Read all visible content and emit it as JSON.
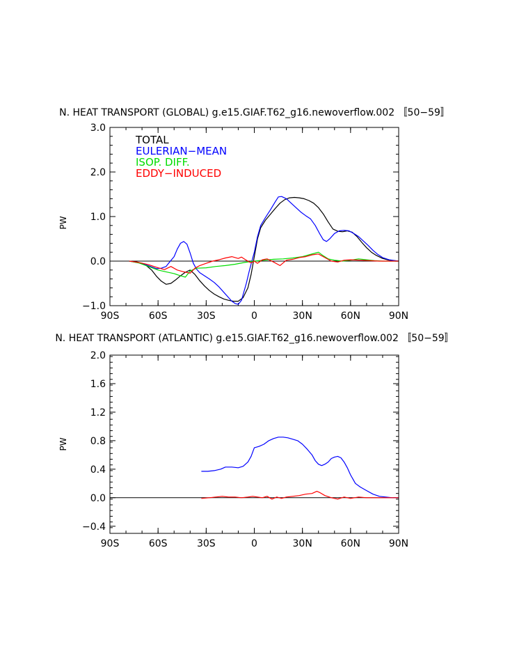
{
  "chart_data": [
    {
      "type": "line",
      "title": "N. HEAT TRANSPORT (GLOBAL) g.e15.GIAF.T62_g16.newoverflow.002 〚50−59〛",
      "xlabel": "",
      "ylabel": "PW",
      "xlim": [
        -90,
        90
      ],
      "ylim": [
        -1.0,
        3.0
      ],
      "xticks": [
        -90,
        -60,
        -30,
        0,
        30,
        60,
        90
      ],
      "xtick_labels": [
        "90S",
        "60S",
        "30S",
        "0",
        "30N",
        "60N",
        "90N"
      ],
      "yticks": [
        -1.0,
        0.0,
        1.0,
        2.0,
        3.0
      ],
      "ytick_labels": [
        "−1.0",
        "0.0",
        "1.0",
        "2.0",
        "3.0"
      ],
      "legend": [
        "TOTAL",
        "EULERIAN−MEAN",
        "ISOP. DIFF.",
        "EDDY−INDUCED"
      ],
      "legend_position": "top-left",
      "series": [
        {
          "name": "TOTAL",
          "color": "#000000",
          "x": [
            -78,
            -73,
            -68,
            -64,
            -61,
            -58,
            -55,
            -52,
            -49,
            -46,
            -43,
            -40,
            -37,
            -34,
            -31,
            -28,
            -25,
            -22,
            -19,
            -16,
            -13,
            -10,
            -7,
            -4,
            -2,
            0,
            2,
            4,
            7,
            10,
            13,
            16,
            19,
            22,
            25,
            28,
            31,
            34,
            37,
            40,
            43,
            46,
            49,
            52,
            55,
            58,
            61,
            64,
            67,
            70,
            73,
            76,
            80,
            84,
            88,
            90
          ],
          "y": [
            0,
            -0.02,
            -0.08,
            -0.2,
            -0.34,
            -0.45,
            -0.52,
            -0.5,
            -0.42,
            -0.33,
            -0.25,
            -0.2,
            -0.3,
            -0.44,
            -0.56,
            -0.66,
            -0.74,
            -0.8,
            -0.85,
            -0.88,
            -0.9,
            -0.9,
            -0.82,
            -0.6,
            -0.3,
            0.1,
            0.5,
            0.75,
            0.92,
            1.05,
            1.18,
            1.3,
            1.38,
            1.42,
            1.43,
            1.42,
            1.4,
            1.36,
            1.3,
            1.2,
            1.06,
            0.88,
            0.72,
            0.67,
            0.66,
            0.68,
            0.65,
            0.55,
            0.42,
            0.3,
            0.2,
            0.13,
            0.06,
            0.02,
            0,
            0
          ]
        },
        {
          "name": "EULERIAN−MEAN",
          "color": "#0000ff",
          "x": [
            -78,
            -73,
            -68,
            -64,
            -61,
            -58,
            -55,
            -53,
            -50,
            -48,
            -46,
            -44,
            -42,
            -40,
            -38,
            -36,
            -34,
            -31,
            -28,
            -25,
            -22,
            -19,
            -16,
            -14,
            -12,
            -10,
            -8,
            -5,
            -3,
            0,
            2,
            4,
            7,
            10,
            13,
            15,
            17,
            20,
            23,
            26,
            29,
            32,
            35,
            38,
            41,
            43,
            45,
            47,
            50,
            53,
            56,
            59,
            62,
            65,
            68,
            71,
            74,
            77,
            80,
            84,
            88,
            90
          ],
          "y": [
            0,
            -0.03,
            -0.08,
            -0.13,
            -0.17,
            -0.16,
            -0.12,
            -0.03,
            0.1,
            0.27,
            0.4,
            0.44,
            0.38,
            0.18,
            -0.05,
            -0.18,
            -0.26,
            -0.33,
            -0.4,
            -0.48,
            -0.58,
            -0.7,
            -0.82,
            -0.9,
            -0.95,
            -0.97,
            -0.88,
            -0.5,
            -0.2,
            0.2,
            0.55,
            0.8,
            0.98,
            1.15,
            1.33,
            1.44,
            1.45,
            1.4,
            1.3,
            1.2,
            1.1,
            1.02,
            0.95,
            0.8,
            0.6,
            0.48,
            0.44,
            0.5,
            0.62,
            0.68,
            0.69,
            0.68,
            0.62,
            0.55,
            0.45,
            0.35,
            0.24,
            0.15,
            0.08,
            0.03,
            0.01,
            0
          ]
        },
        {
          "name": "ISOP. DIFF.",
          "color": "#00dd00",
          "x": [
            -78,
            -72,
            -66,
            -60,
            -55,
            -50,
            -46,
            -43,
            -40,
            -36,
            -30,
            -24,
            -18,
            -12,
            -6,
            0,
            6,
            12,
            18,
            24,
            30,
            34,
            38,
            40,
            43,
            46,
            50,
            55,
            60,
            65,
            70,
            75,
            80,
            85,
            90
          ],
          "y": [
            0,
            -0.04,
            -0.12,
            -0.2,
            -0.24,
            -0.28,
            -0.33,
            -0.36,
            -0.22,
            -0.16,
            -0.15,
            -0.12,
            -0.1,
            -0.07,
            -0.03,
            0,
            0.02,
            0.04,
            0.05,
            0.07,
            0.1,
            0.14,
            0.18,
            0.2,
            0.12,
            0.05,
            0.02,
            0.0,
            0.02,
            0.05,
            0.03,
            0.01,
            0,
            0,
            0
          ]
        },
        {
          "name": "EDDY−INDUCED",
          "color": "#ff0000",
          "x": [
            -78,
            -72,
            -66,
            -60,
            -56,
            -52,
            -48,
            -44,
            -40,
            -37,
            -34,
            -30,
            -26,
            -22,
            -18,
            -14,
            -10,
            -8,
            -5,
            -2,
            0,
            2,
            5,
            8,
            12,
            16,
            20,
            24,
            28,
            32,
            36,
            40,
            44,
            48,
            52,
            56,
            60,
            66,
            72,
            78,
            84,
            90
          ],
          "y": [
            0,
            -0.03,
            -0.08,
            -0.15,
            -0.19,
            -0.12,
            -0.2,
            -0.24,
            -0.27,
            -0.16,
            -0.1,
            -0.05,
            0.0,
            0.03,
            0.07,
            0.1,
            0.06,
            0.09,
            0.02,
            -0.04,
            0.0,
            -0.05,
            0.03,
            0.05,
            -0.02,
            -0.1,
            0.02,
            0.04,
            0.08,
            0.1,
            0.14,
            0.16,
            0.08,
            0.0,
            -0.02,
            0.02,
            0.03,
            0.02,
            0.01,
            0,
            0,
            0
          ]
        }
      ]
    },
    {
      "type": "line",
      "title": "N. HEAT TRANSPORT (ATLANTIC) g.e15.GIAF.T62_g16.newoverflow.002 〚50−59〛",
      "xlabel": "",
      "ylabel": "PW",
      "xlim": [
        -90,
        90
      ],
      "ylim": [
        -0.5,
        2.0
      ],
      "xticks": [
        -90,
        -60,
        -30,
        0,
        30,
        60,
        90
      ],
      "xtick_labels": [
        "90S",
        "60S",
        "30S",
        "0",
        "30N",
        "60N",
        "90N"
      ],
      "yticks": [
        -0.4,
        0.0,
        0.4,
        0.8,
        1.2,
        1.6,
        2.0
      ],
      "ytick_labels": [
        "−0.4",
        "0.0",
        "0.4",
        "0.8",
        "1.2",
        "1.6",
        "2.0"
      ],
      "series": [
        {
          "name": "EULERIAN−MEAN",
          "color": "#0000ff",
          "x": [
            -33,
            -29,
            -25,
            -21,
            -18,
            -14,
            -10,
            -7,
            -4,
            -2,
            0,
            3,
            6,
            9,
            12,
            15,
            18,
            21,
            24,
            27,
            30,
            33,
            36,
            38,
            40,
            42,
            44,
            46,
            48,
            50,
            52,
            54,
            56,
            58,
            60,
            63,
            66,
            70,
            74,
            78,
            82,
            86,
            90
          ],
          "y": [
            0.37,
            0.37,
            0.38,
            0.4,
            0.43,
            0.43,
            0.42,
            0.44,
            0.5,
            0.58,
            0.7,
            0.72,
            0.75,
            0.8,
            0.83,
            0.85,
            0.85,
            0.84,
            0.82,
            0.8,
            0.75,
            0.68,
            0.6,
            0.52,
            0.47,
            0.45,
            0.47,
            0.5,
            0.55,
            0.57,
            0.58,
            0.56,
            0.5,
            0.42,
            0.32,
            0.2,
            0.15,
            0.1,
            0.05,
            0.02,
            0.01,
            0,
            0
          ]
        },
        {
          "name": "EDDY−INDUCED",
          "color": "#ff0000",
          "x": [
            -33,
            -28,
            -24,
            -20,
            -16,
            -12,
            -8,
            -4,
            -1,
            2,
            5,
            8,
            11,
            14,
            17,
            20,
            24,
            28,
            32,
            36,
            39,
            41,
            44,
            48,
            52,
            56,
            60,
            65,
            70,
            76,
            82,
            90
          ],
          "y": [
            -0.01,
            0.0,
            0.01,
            0.02,
            0.01,
            0.01,
            0.0,
            0.01,
            0.02,
            0.01,
            0.0,
            0.02,
            -0.02,
            0.01,
            -0.01,
            0.01,
            0.02,
            0.03,
            0.05,
            0.06,
            0.09,
            0.07,
            0.03,
            0.0,
            -0.02,
            0.01,
            -0.01,
            0.01,
            0.0,
            0.0,
            0.0,
            0
          ]
        }
      ]
    }
  ]
}
